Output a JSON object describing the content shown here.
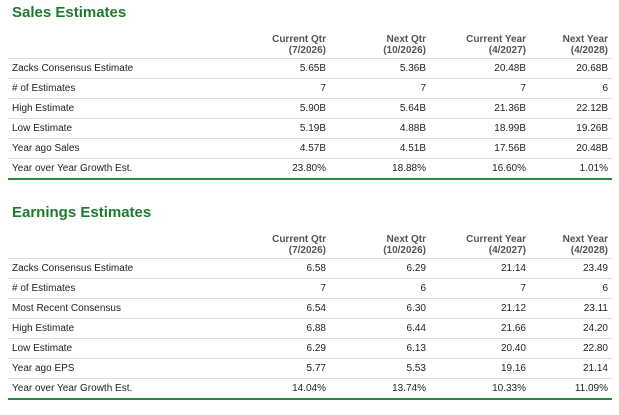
{
  "sales": {
    "title": "Sales Estimates",
    "columns": [
      {
        "name": "Current Qtr",
        "period": "(7/2026)"
      },
      {
        "name": "Next Qtr",
        "period": "(10/2026)"
      },
      {
        "name": "Current Year",
        "period": "(4/2027)"
      },
      {
        "name": "Next Year",
        "period": "(4/2028)"
      }
    ],
    "rows": [
      {
        "label": "Zacks Consensus Estimate",
        "values": [
          "5.65B",
          "5.36B",
          "20.48B",
          "20.68B"
        ]
      },
      {
        "label": "# of Estimates",
        "values": [
          "7",
          "7",
          "7",
          "6"
        ]
      },
      {
        "label": "High Estimate",
        "values": [
          "5.90B",
          "5.64B",
          "21.36B",
          "22.12B"
        ]
      },
      {
        "label": "Low Estimate",
        "values": [
          "5.19B",
          "4.88B",
          "18.99B",
          "19.26B"
        ]
      },
      {
        "label": "Year ago Sales",
        "values": [
          "4.57B",
          "4.51B",
          "17.56B",
          "20.48B"
        ]
      },
      {
        "label": "Year over Year Growth Est.",
        "values": [
          "23.80%",
          "18.88%",
          "16.60%",
          "1.01%"
        ]
      }
    ]
  },
  "earnings": {
    "title": "Earnings Estimates",
    "columns": [
      {
        "name": "Current Qtr",
        "period": "(7/2026)"
      },
      {
        "name": "Next Qtr",
        "period": "(10/2026)"
      },
      {
        "name": "Current Year",
        "period": "(4/2027)"
      },
      {
        "name": "Next Year",
        "period": "(4/2028)"
      }
    ],
    "rows": [
      {
        "label": "Zacks Consensus Estimate",
        "values": [
          "6.58",
          "6.29",
          "21.14",
          "23.49"
        ]
      },
      {
        "label": "# of Estimates",
        "values": [
          "7",
          "6",
          "7",
          "6"
        ]
      },
      {
        "label": "Most Recent Consensus",
        "values": [
          "6.54",
          "6.30",
          "21.12",
          "23.11"
        ]
      },
      {
        "label": "High Estimate",
        "values": [
          "6.88",
          "6.44",
          "21.66",
          "24.20"
        ]
      },
      {
        "label": "Low Estimate",
        "values": [
          "6.29",
          "6.13",
          "20.40",
          "22.80"
        ]
      },
      {
        "label": "Year ago EPS",
        "values": [
          "5.77",
          "5.53",
          "19.16",
          "21.14"
        ]
      },
      {
        "label": "Year over Year Growth Est.",
        "values": [
          "14.04%",
          "13.74%",
          "10.33%",
          "11.09%"
        ]
      }
    ]
  },
  "colors": {
    "title_green": "#1e7a2e",
    "rule_green": "#2e8b3e",
    "row_border": "#dcdcdc"
  }
}
